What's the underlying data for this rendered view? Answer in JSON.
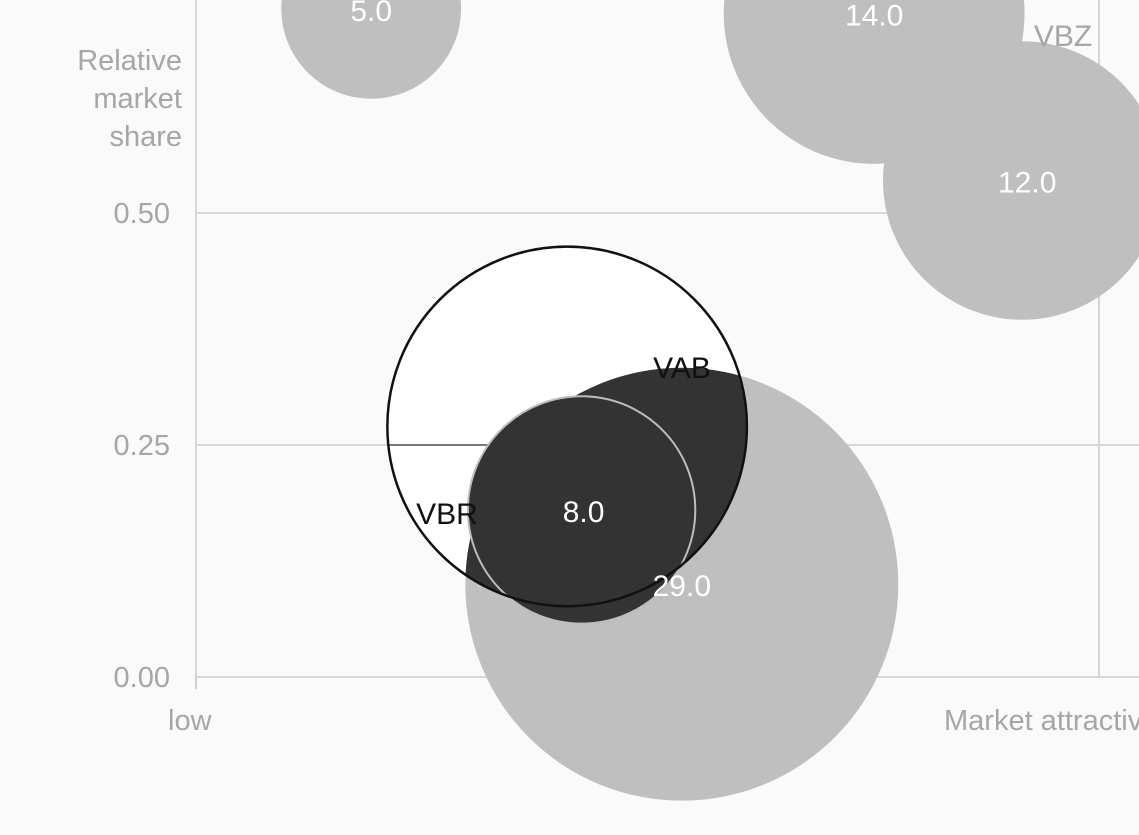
{
  "chart_data": {
    "type": "scatter",
    "xlabel": "Market attractiveness",
    "ylabel": "Relative market share",
    "x_start_label": "low",
    "ylim": [
      0,
      0.5
    ],
    "y_ticks": [
      "0.00",
      "0.25",
      "0.50"
    ],
    "grid": true,
    "colors": {
      "background": "#fafafa",
      "grid": "#d6d6d6",
      "axis_text": "#a6a6a6",
      "bubble_muted": "#bfbfbf",
      "bubble_highlight": "#333333",
      "bubble_selected_fill": "#ffffff",
      "outline": "#111111",
      "label_dark": "#111111",
      "label_muted": "#a6a6a6",
      "value_text": "#ffffff"
    },
    "bubbles": [
      {
        "id": "b5",
        "name": "",
        "value_label": "5.0",
        "x": 1.94,
        "y": 0.72,
        "size": 5,
        "style": "muted"
      },
      {
        "id": "b14",
        "name": "",
        "value_label": "14.0",
        "x": 7.51,
        "y": 0.715,
        "size": 14,
        "style": "muted"
      },
      {
        "id": "bvbz",
        "name": "VBZ",
        "value_label": "12.0",
        "x": 9.15,
        "y": 0.535,
        "size": 12,
        "style": "muted"
      },
      {
        "id": "b29",
        "name": "",
        "value_label": "29.0",
        "x": 5.38,
        "y": 0.1,
        "size": 29,
        "style": "muted"
      },
      {
        "id": "bvab",
        "name": "VAB",
        "value_label": "",
        "x": 4.11,
        "y": 0.27,
        "size": 20,
        "style": "selected"
      },
      {
        "id": "bvbr",
        "name": "VBR",
        "value_label": "8.0",
        "x": 4.27,
        "y": 0.18,
        "size": 8,
        "style": "highlight"
      }
    ]
  }
}
